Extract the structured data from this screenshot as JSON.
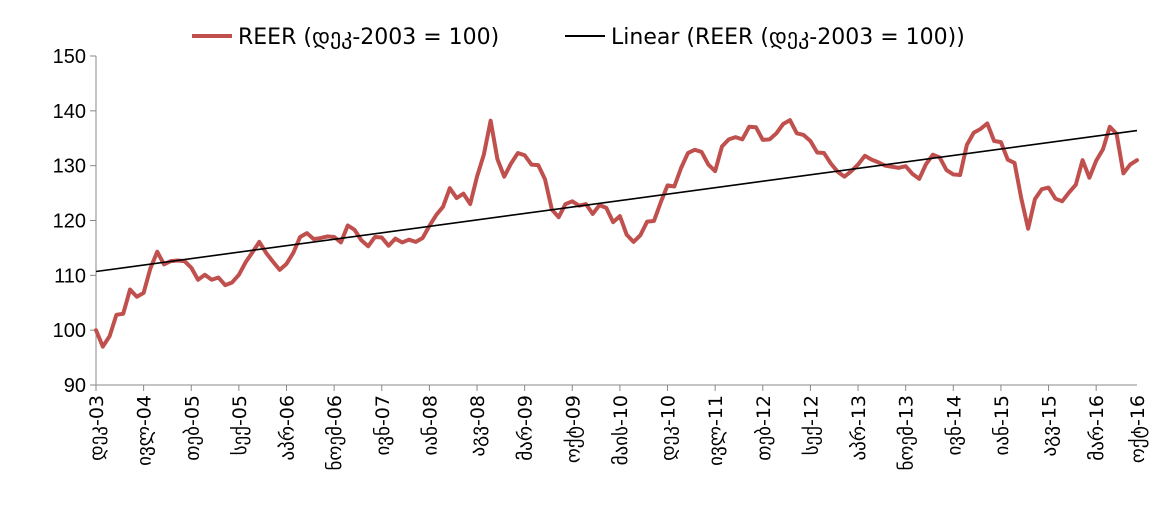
{
  "chart_data": {
    "type": "line",
    "series": [
      {
        "name": "REER (დეკ-2003 = 100)",
        "color": "#C0504D",
        "values": [
          100.0,
          97.0,
          98.9,
          102.8,
          103.0,
          107.4,
          106.1,
          106.8,
          111.3,
          114.3,
          112.0,
          112.6,
          112.7,
          112.6,
          111.4,
          109.2,
          110.1,
          109.2,
          109.6,
          108.2,
          108.7,
          110.1,
          112.4,
          114.2,
          116.1,
          114.1,
          112.5,
          111.0,
          112.1,
          114.1,
          117.0,
          117.7,
          116.6,
          116.8,
          117.1,
          117.0,
          116.0,
          119.1,
          118.3,
          116.4,
          115.3,
          117.0,
          116.9,
          115.4,
          116.7,
          116.0,
          116.5,
          116.1,
          116.8,
          119.0,
          121.0,
          122.5,
          125.9,
          124.1,
          124.9,
          123.0,
          128.0,
          132.0,
          138.2,
          131.2,
          128.0,
          130.4,
          132.3,
          131.9,
          130.2,
          130.1,
          127.5,
          122.0,
          120.6,
          123.0,
          123.5,
          122.7,
          123.0,
          121.2,
          122.8,
          122.3,
          119.7,
          120.8,
          117.4,
          116.1,
          117.3,
          119.8,
          119.9,
          123.3,
          126.4,
          126.2,
          129.6,
          132.3,
          132.9,
          132.5,
          130.2,
          129.0,
          133.5,
          134.8,
          135.2,
          134.8,
          137.1,
          137.0,
          134.7,
          134.8,
          135.9,
          137.6,
          138.3,
          135.9,
          135.6,
          134.5,
          132.4,
          132.3,
          130.4,
          128.9,
          128.0,
          129.0,
          130.2,
          131.8,
          131.1,
          130.6,
          130.0,
          129.8,
          129.6,
          129.9,
          128.5,
          127.6,
          130.3,
          132.0,
          131.5,
          129.2,
          128.4,
          128.3,
          133.8,
          136.0,
          136.7,
          137.7,
          134.5,
          134.3,
          131.1,
          130.5,
          124.0,
          118.5,
          123.9,
          125.7,
          126.0,
          124.0,
          123.5,
          125.1,
          126.5,
          131.0,
          127.8,
          130.9,
          133.0,
          137.1,
          135.8,
          128.6,
          130.2,
          131.0
        ]
      },
      {
        "name": "Linear (REER (დეკ-2003 = 100))",
        "color": "#000000",
        "type": "linear-trend",
        "start": 110.7,
        "end": 136.4
      }
    ],
    "x_tick_labels": [
      "დეკ-03",
      "ივლ-04",
      "თებ-05",
      "სექ-05",
      "აპრ-06",
      "ნოემ-06",
      "ივნ-07",
      "იან-08",
      "აგვ-08",
      "მარ-09",
      "ოქტ-09",
      "მაის-10",
      "დეკ-10",
      "ივლ-11",
      "თებ-12",
      "სექ-12",
      "აპრ-13",
      "ნოემ-13",
      "ივნ-14",
      "იან-15",
      "აგვ-15",
      "მარ-16",
      "ოქტ-16"
    ],
    "x_tick_step_months": 7,
    "y_ticks": [
      90,
      100,
      110,
      120,
      130,
      140,
      150
    ],
    "ylim": [
      90,
      150
    ],
    "grid": false,
    "legend_position": "top"
  }
}
